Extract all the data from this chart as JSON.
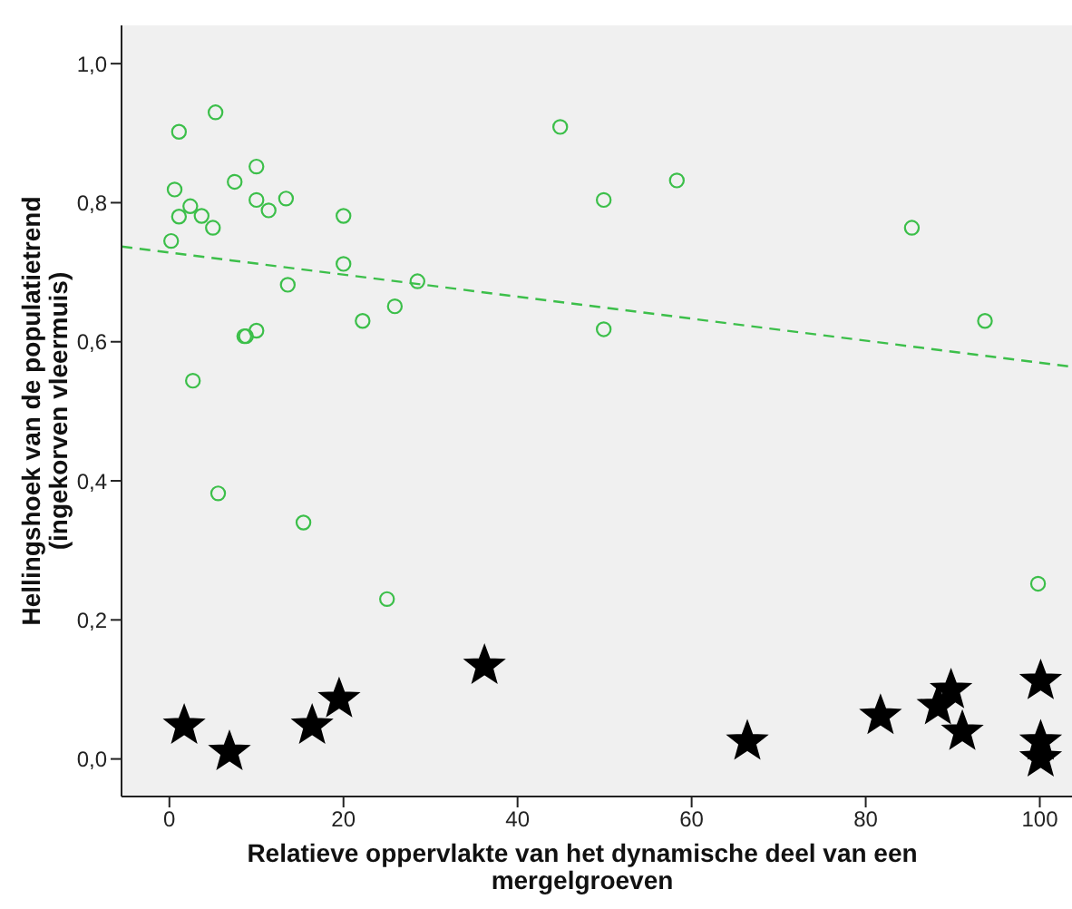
{
  "chart_data": {
    "type": "scatter",
    "xlabel": "Relatieve oppervlakte van het dynamische deel van een mergelgroeven",
    "ylabel": "Hellingshoek van de populatietrend (ingekorven vleermuis)",
    "xlim": [
      -5.5,
      103.7
    ],
    "xticks": [
      0,
      20,
      40,
      60,
      80,
      100
    ],
    "ylim": [
      -0.054,
      1.055
    ],
    "yticks": [
      {
        "value": 0,
        "label": "0,0"
      },
      {
        "value": 0.2,
        "label": "0,2"
      },
      {
        "value": 0.4,
        "label": "0,4"
      },
      {
        "value": 0.6,
        "label": "0,6"
      },
      {
        "value": 0.8,
        "label": "0,8"
      },
      {
        "value": 1.0,
        "label": "1,0"
      }
    ],
    "grid": false,
    "series": [
      {
        "marker": "circle",
        "color": "#3cbf4a",
        "x": [
          5.3,
          1.1,
          10.0,
          7.5,
          0.6,
          2.4,
          10.0,
          13.4,
          11.4,
          1.1,
          3.7,
          5.0,
          0.2,
          20.0,
          20.0,
          13.6,
          28.5,
          25.9,
          22.2,
          8.8,
          8.6,
          10.0,
          2.7,
          5.6,
          15.4,
          25.0,
          44.9,
          49.9,
          49.9,
          58.3,
          85.3,
          93.7,
          99.8
        ],
        "values": [
          0.93,
          0.902,
          0.852,
          0.83,
          0.819,
          0.795,
          0.804,
          0.806,
          0.789,
          0.78,
          0.781,
          0.764,
          0.745,
          0.781,
          0.712,
          0.682,
          0.687,
          0.651,
          0.63,
          0.608,
          0.608,
          0.616,
          0.544,
          0.382,
          0.34,
          0.23,
          0.909,
          0.804,
          0.618,
          0.832,
          0.764,
          0.63,
          0.252
        ]
      },
      {
        "type": "line",
        "line_style": "dashed",
        "marker": "none",
        "color": "#3cbf4a",
        "x": [
          -5.5,
          103.7
        ],
        "values": [
          0.737,
          0.564
        ]
      },
      {
        "marker": "star",
        "color": "#000000",
        "x": [
          1.7,
          6.9,
          16.4,
          19.5,
          36.2,
          66.4,
          81.7,
          88.3,
          89.8,
          91.1,
          100.1,
          100.1,
          100.1
        ],
        "values": [
          0.048,
          0.01,
          0.048,
          0.086,
          0.134,
          0.025,
          0.062,
          0.076,
          0.099,
          0.039,
          0.112,
          0.025,
          0.001
        ]
      }
    ]
  }
}
